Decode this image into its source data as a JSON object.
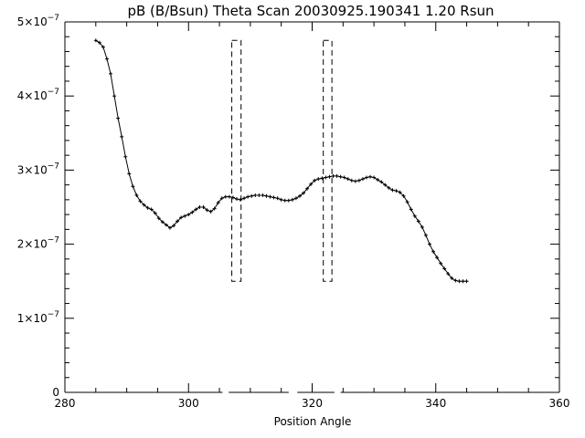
{
  "chart_data": {
    "type": "line",
    "title": "pB (B/Bsun) Theta Scan 20030925.190341 1.20 Rsun",
    "xlabel": "Position Angle",
    "ylabel": "",
    "xlim": [
      280,
      360
    ],
    "ylim": [
      0,
      5e-07
    ],
    "grid": false,
    "x_ticks": [
      {
        "value": 280,
        "label": "280"
      },
      {
        "value": 300,
        "label": "300"
      },
      {
        "value": 320,
        "label": "320"
      },
      {
        "value": 340,
        "label": "340"
      },
      {
        "value": 360,
        "label": "360"
      }
    ],
    "y_ticks": [
      {
        "value": 0,
        "mantissa": "0",
        "exponent": ""
      },
      {
        "value": 1e-07,
        "mantissa": "1×10",
        "exponent": "−7"
      },
      {
        "value": 2e-07,
        "mantissa": "2×10",
        "exponent": "−7"
      },
      {
        "value": 3e-07,
        "mantissa": "3×10",
        "exponent": "−7"
      },
      {
        "value": 4e-07,
        "mantissa": "4×10",
        "exponent": "−7"
      },
      {
        "value": 5e-07,
        "mantissa": "5×10",
        "exponent": "−7"
      }
    ],
    "series": [
      {
        "x": [
          285.0,
          285.6,
          286.2,
          286.8,
          287.4,
          288.0,
          288.6,
          289.2,
          289.8,
          290.4,
          291.0,
          291.6,
          292.2,
          292.8,
          293.4,
          294.0,
          294.6,
          295.2,
          295.8,
          296.4,
          297.0,
          297.6,
          298.2,
          298.8,
          299.4,
          300.0,
          300.6,
          301.2,
          301.8,
          302.4,
          303.0,
          303.6,
          304.2,
          304.8,
          305.4,
          306.0,
          306.6,
          307.2,
          307.8,
          308.4,
          309.0,
          309.6,
          310.2,
          310.8,
          311.4,
          312.0,
          312.6,
          313.2,
          313.8,
          314.4,
          315.0,
          315.6,
          316.2,
          316.8,
          317.4,
          318.0,
          318.6,
          319.2,
          319.8,
          320.4,
          321.0,
          321.6,
          322.2,
          322.8,
          323.4,
          324.0,
          324.6,
          325.2,
          325.8,
          326.4,
          327.0,
          327.6,
          328.2,
          328.8,
          329.4,
          330.0,
          330.6,
          331.2,
          331.8,
          332.4,
          333.0,
          333.6,
          334.2,
          334.8,
          335.4,
          336.0,
          336.6,
          337.2,
          337.8,
          338.4,
          339.0,
          339.6,
          340.2,
          340.8,
          341.4,
          342.0,
          342.6,
          343.2,
          343.8,
          344.4,
          345.0
        ],
        "values": [
          4.75e-07,
          4.72e-07,
          4.66e-07,
          4.5e-07,
          4.3e-07,
          4e-07,
          3.7e-07,
          3.45e-07,
          3.18e-07,
          2.95e-07,
          2.78e-07,
          2.66e-07,
          2.58e-07,
          2.53e-07,
          2.49e-07,
          2.47e-07,
          2.42e-07,
          2.35e-07,
          2.3e-07,
          2.26e-07,
          2.22e-07,
          2.25e-07,
          2.31e-07,
          2.36e-07,
          2.38e-07,
          2.4e-07,
          2.43e-07,
          2.47e-07,
          2.5e-07,
          2.5e-07,
          2.46e-07,
          2.44e-07,
          2.48e-07,
          2.56e-07,
          2.62e-07,
          2.64e-07,
          2.64e-07,
          2.63e-07,
          2.61e-07,
          2.6e-07,
          2.62e-07,
          2.64e-07,
          2.65e-07,
          2.66e-07,
          2.66e-07,
          2.66e-07,
          2.65e-07,
          2.64e-07,
          2.63e-07,
          2.62e-07,
          2.6e-07,
          2.59e-07,
          2.59e-07,
          2.6e-07,
          2.62e-07,
          2.65e-07,
          2.69e-07,
          2.75e-07,
          2.81e-07,
          2.86e-07,
          2.88e-07,
          2.89e-07,
          2.9e-07,
          2.91e-07,
          2.92e-07,
          2.92e-07,
          2.91e-07,
          2.9e-07,
          2.88e-07,
          2.86e-07,
          2.85e-07,
          2.86e-07,
          2.88e-07,
          2.9e-07,
          2.91e-07,
          2.9e-07,
          2.87e-07,
          2.84e-07,
          2.8e-07,
          2.76e-07,
          2.73e-07,
          2.72e-07,
          2.7e-07,
          2.65e-07,
          2.57e-07,
          2.47e-07,
          2.38e-07,
          2.31e-07,
          2.23e-07,
          2.12e-07,
          2e-07,
          1.9e-07,
          1.82e-07,
          1.74e-07,
          1.67e-07,
          1.6e-07,
          1.54e-07,
          1.51e-07,
          1.5e-07,
          1.5e-07,
          1.5e-07
        ],
        "color": "#000000",
        "marker": "plus"
      }
    ],
    "annotations": [
      {
        "type": "dashed-box",
        "x": [
          307,
          308.5
        ],
        "y": [
          1.5e-07,
          4.75e-07
        ]
      },
      {
        "type": "dashed-box",
        "x": [
          321.8,
          323.2
        ],
        "y": [
          1.5e-07,
          4.75e-07
        ]
      }
    ],
    "axis_gaps": [
      [
        305.5,
        306.5
      ],
      [
        316.2,
        317.6
      ],
      [
        323.6,
        324.6
      ]
    ]
  }
}
